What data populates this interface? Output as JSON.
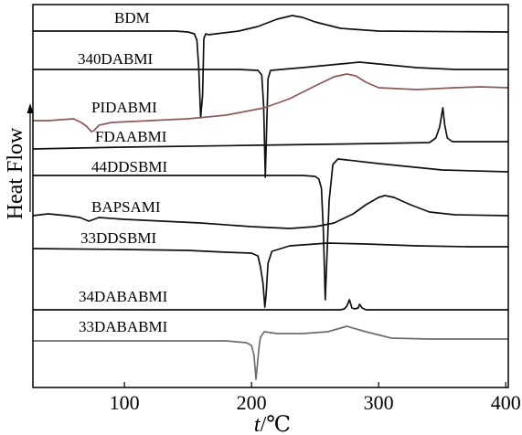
{
  "chart_data": {
    "type": "line",
    "ylabel": "Heat Flow",
    "xlabel_italic": "t",
    "xlabel_unit": "/℃",
    "xlim": [
      28,
      402
    ],
    "x_ticks": [
      100,
      200,
      300,
      400
    ],
    "grid": false,
    "colors": {
      "default": "#111111",
      "PIDABMI": "#8b5a56",
      "33DABABMI": "#6e6e6e"
    },
    "series": [
      {
        "name": "BDM",
        "offset": 34,
        "points": [
          [
            28,
            0
          ],
          [
            100,
            0
          ],
          [
            140,
            0
          ],
          [
            150,
            1
          ],
          [
            155,
            3
          ],
          [
            157,
            10
          ],
          [
            158.5,
            40
          ],
          [
            160,
            95
          ],
          [
            161.5,
            70
          ],
          [
            162.5,
            8
          ],
          [
            164,
            3
          ],
          [
            166,
            4
          ],
          [
            172,
            3
          ],
          [
            190,
            0
          ],
          [
            205,
            -5
          ],
          [
            220,
            -13
          ],
          [
            232,
            -17
          ],
          [
            240,
            -15
          ],
          [
            250,
            -10
          ],
          [
            270,
            -3
          ],
          [
            300,
            0
          ],
          [
            402,
            1
          ]
        ]
      },
      {
        "name": "340DABMI",
        "offset": 76,
        "points": [
          [
            28,
            0
          ],
          [
            150,
            0
          ],
          [
            190,
            0
          ],
          [
            205,
            1
          ],
          [
            208,
            6
          ],
          [
            209.5,
            40
          ],
          [
            210.8,
            118
          ],
          [
            212,
            60
          ],
          [
            213,
            10
          ],
          [
            215,
            1
          ],
          [
            240,
            -2
          ],
          [
            270,
            -6
          ],
          [
            285,
            -8
          ],
          [
            300,
            -6
          ],
          [
            330,
            -2
          ],
          [
            360,
            0
          ],
          [
            402,
            0
          ]
        ]
      },
      {
        "name": "PIDABMI",
        "offset": 128,
        "points": [
          [
            28,
            4
          ],
          [
            40,
            4
          ],
          [
            50,
            3
          ],
          [
            60,
            2
          ],
          [
            66,
            6
          ],
          [
            70,
            10
          ],
          [
            74,
            16
          ],
          [
            76,
            15
          ],
          [
            80,
            9
          ],
          [
            90,
            6
          ],
          [
            120,
            4
          ],
          [
            150,
            2
          ],
          [
            180,
            -2
          ],
          [
            210,
            -10
          ],
          [
            230,
            -20
          ],
          [
            250,
            -34
          ],
          [
            265,
            -44
          ],
          [
            275,
            -47
          ],
          [
            282,
            -45
          ],
          [
            290,
            -38
          ],
          [
            300,
            -32
          ],
          [
            330,
            -30
          ],
          [
            360,
            -32
          ],
          [
            380,
            -33
          ],
          [
            402,
            -32
          ]
        ]
      },
      {
        "name": "FDAABMI",
        "offset": 155,
        "points": [
          [
            28,
            8
          ],
          [
            100,
            6
          ],
          [
            200,
            4
          ],
          [
            300,
            2
          ],
          [
            340,
            1
          ],
          [
            345,
            -4
          ],
          [
            348,
            -16
          ],
          [
            350.5,
            -37
          ],
          [
            352,
            -18
          ],
          [
            354,
            -4
          ],
          [
            358,
            0
          ],
          [
            402,
            0
          ]
        ]
      },
      {
        "name": "44DDSBMI",
        "offset": 192,
        "points": [
          [
            28,
            0
          ],
          [
            150,
            0
          ],
          [
            200,
            0
          ],
          [
            240,
            0
          ],
          [
            250,
            1
          ],
          [
            253,
            4
          ],
          [
            255,
            14
          ],
          [
            256.5,
            60
          ],
          [
            258,
            136
          ],
          [
            259,
            100
          ],
          [
            261,
            28
          ],
          [
            264,
            -12
          ],
          [
            268,
            -18
          ],
          [
            275,
            -17
          ],
          [
            300,
            -13
          ],
          [
            350,
            -6
          ],
          [
            402,
            -4
          ]
        ]
      },
      {
        "name": "BAPSAMI",
        "offset": 236,
        "points": [
          [
            28,
            0
          ],
          [
            40,
            -2
          ],
          [
            55,
            0
          ],
          [
            65,
            2
          ],
          [
            72,
            6
          ],
          [
            80,
            2
          ],
          [
            100,
            4
          ],
          [
            130,
            6
          ],
          [
            160,
            8
          ],
          [
            200,
            12
          ],
          [
            230,
            14
          ],
          [
            250,
            12
          ],
          [
            265,
            8
          ],
          [
            280,
            -2
          ],
          [
            290,
            -12
          ],
          [
            300,
            -20
          ],
          [
            305,
            -22
          ],
          [
            312,
            -20
          ],
          [
            325,
            -12
          ],
          [
            340,
            -4
          ],
          [
            360,
            -1
          ],
          [
            402,
            0
          ]
        ]
      },
      {
        "name": "33DDSBMI",
        "offset": 272,
        "points": [
          [
            28,
            0
          ],
          [
            100,
            1
          ],
          [
            150,
            2
          ],
          [
            180,
            4
          ],
          [
            200,
            5
          ],
          [
            205,
            8
          ],
          [
            207,
            20
          ],
          [
            209,
            38
          ],
          [
            210.5,
            64
          ],
          [
            211.5,
            50
          ],
          [
            213,
            16
          ],
          [
            216,
            3
          ],
          [
            230,
            -3
          ],
          [
            260,
            -6
          ],
          [
            290,
            -5
          ],
          [
            330,
            -3
          ],
          [
            370,
            -2
          ],
          [
            402,
            -2
          ]
        ]
      },
      {
        "name": "34DABABMI",
        "offset": 339,
        "points": [
          [
            28,
            0
          ],
          [
            100,
            0
          ],
          [
            200,
            0
          ],
          [
            250,
            0
          ],
          [
            270,
            0
          ],
          [
            273,
            -1
          ],
          [
            275,
            -4
          ],
          [
            277,
            -11
          ],
          [
            279,
            -2
          ],
          [
            281,
            -1
          ],
          [
            284,
            -2
          ],
          [
            285,
            -6
          ],
          [
            287,
            -2
          ],
          [
            290,
            0
          ],
          [
            300,
            0
          ],
          [
            402,
            0
          ]
        ]
      },
      {
        "name": "33DABABMI",
        "offset": 373,
        "points": [
          [
            28,
            0
          ],
          [
            100,
            0
          ],
          [
            180,
            0
          ],
          [
            196,
            2
          ],
          [
            200,
            5
          ],
          [
            202,
            16
          ],
          [
            203.5,
            42
          ],
          [
            205,
            20
          ],
          [
            206,
            6
          ],
          [
            207,
            -4
          ],
          [
            210,
            -10
          ],
          [
            220,
            -8
          ],
          [
            240,
            -8
          ],
          [
            260,
            -10
          ],
          [
            275,
            -16
          ],
          [
            290,
            -10
          ],
          [
            310,
            -3
          ],
          [
            340,
            -2
          ],
          [
            402,
            -2
          ]
        ]
      }
    ]
  }
}
